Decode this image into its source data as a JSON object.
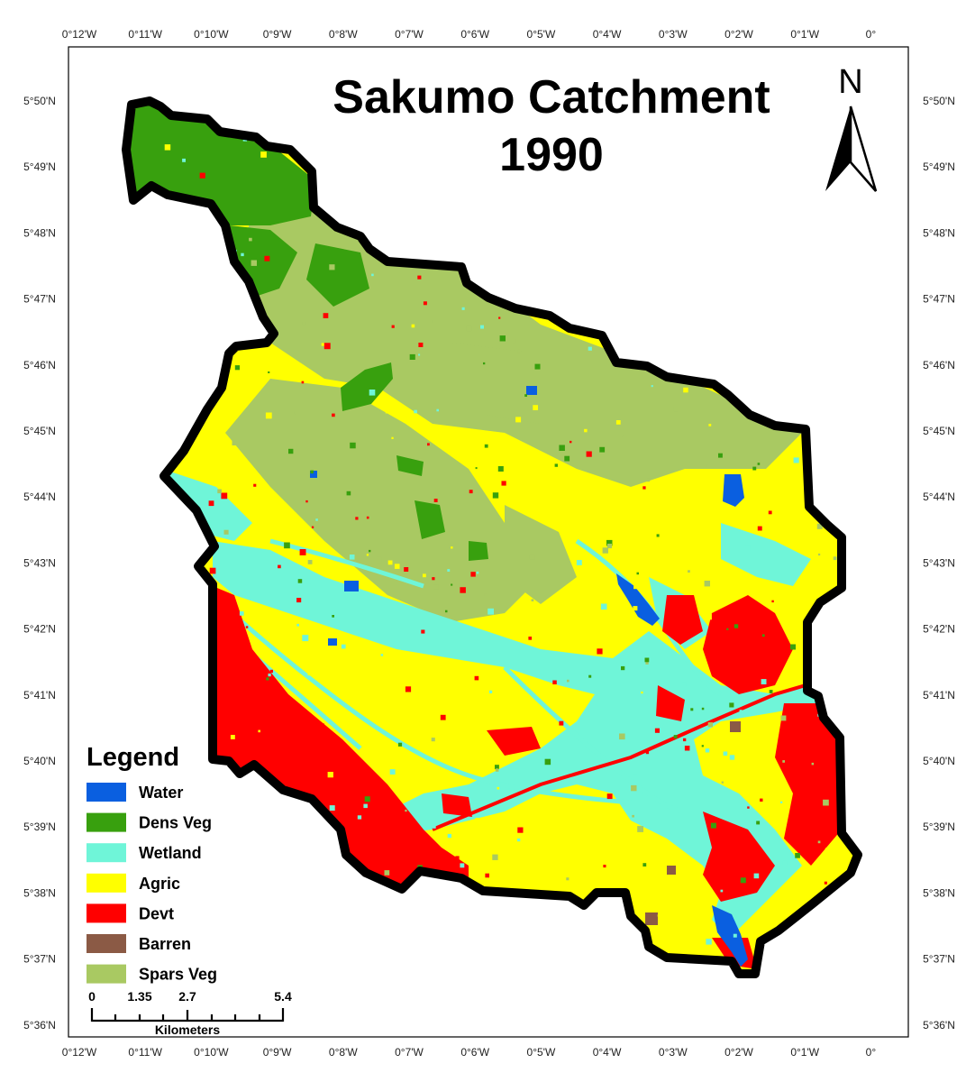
{
  "map": {
    "title_line1": "Sakumo Catchment",
    "title_line2": "1990",
    "north_label": "N",
    "longitude_labels": [
      "0°12'W",
      "0°11'W",
      "0°10'W",
      "0°9'W",
      "0°8'W",
      "0°7'W",
      "0°6'W",
      "0°5'W",
      "0°4'W",
      "0°3'W",
      "0°2'W",
      "0°1'W",
      "0°"
    ],
    "latitude_labels": [
      "5°50'N",
      "5°49'N",
      "5°48'N",
      "5°47'N",
      "5°46'N",
      "5°45'N",
      "5°44'N",
      "5°43'N",
      "5°42'N",
      "5°41'N",
      "5°40'N",
      "5°39'N",
      "5°38'N",
      "5°37'N",
      "5°36'N"
    ],
    "legend": {
      "title": "Legend",
      "items": [
        {
          "label": "Water",
          "color": "#0a5fe0"
        },
        {
          "label": "Dens Veg",
          "color": "#38a00e"
        },
        {
          "label": "Wetland",
          "color": "#6ff5d8"
        },
        {
          "label": "Agric",
          "color": "#ffff00"
        },
        {
          "label": "Devt",
          "color": "#ff0000"
        },
        {
          "label": "Barren",
          "color": "#8b5a45"
        },
        {
          "label": "Spars Veg",
          "color": "#a9c962"
        }
      ]
    },
    "scale_bar": {
      "ticks": [
        "0",
        "1.35",
        "2.7",
        "5.4"
      ],
      "unit": "Kilometers"
    }
  }
}
